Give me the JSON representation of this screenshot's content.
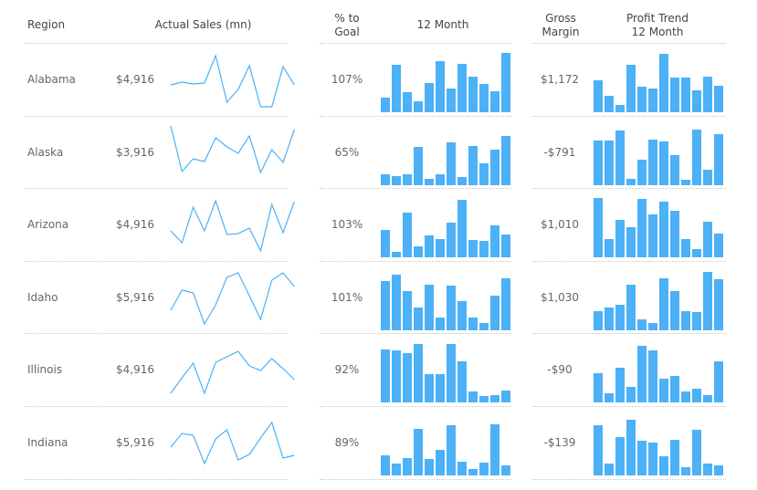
{
  "headers": {
    "region": "Region",
    "actual_sales": "Actual Sales (mn)",
    "pct_goal_1": "% to",
    "pct_goal_2": "Goal",
    "month12": "12 Month",
    "gross_1": "Gross",
    "gross_2": "Margin",
    "profit_1": "Profit Trend",
    "profit_2": "12 Month"
  },
  "colors": {
    "bar": "#4cb1f7",
    "line": "#4cb1f7",
    "divider": "#c8c8c8"
  },
  "rows": [
    {
      "region": "Alabama",
      "sales": "$4,916",
      "pct": "107%",
      "margin": "$1,172",
      "sales_trend": [
        25,
        28,
        26,
        27,
        57,
        6,
        20,
        46,
        1,
        1,
        45,
        25
      ],
      "month12": [
        16,
        52,
        22,
        12,
        32,
        56,
        26,
        53,
        39,
        31,
        23,
        65
      ],
      "profit": [
        35,
        18,
        8,
        52,
        28,
        26,
        64,
        38,
        38,
        24,
        39,
        29
      ]
    },
    {
      "region": "Alaska",
      "sales": "$3,916",
      "pct": "65%",
      "margin": "-$791",
      "sales_trend": [
        60,
        10,
        24,
        21,
        47,
        37,
        30,
        49,
        9,
        34,
        20,
        56
      ],
      "month12": [
        12,
        10,
        12,
        42,
        7,
        12,
        47,
        9,
        43,
        24,
        39,
        54
      ],
      "profit": [
        49,
        49,
        60,
        7,
        28,
        50,
        48,
        33,
        6,
        61,
        17,
        56
      ]
    },
    {
      "region": "Arizona",
      "sales": "$4,916",
      "pct": "103%",
      "margin": "$1,010",
      "sales_trend": [
        24,
        11,
        50,
        24,
        57,
        20,
        21,
        27,
        2,
        53,
        22,
        56
      ],
      "month12": [
        30,
        6,
        49,
        12,
        24,
        20,
        38,
        63,
        19,
        18,
        35,
        25
      ],
      "profit": [
        65,
        20,
        41,
        33,
        64,
        47,
        61,
        51,
        20,
        9,
        39,
        26
      ]
    },
    {
      "region": "Idaho",
      "sales": "$5,916",
      "pct": "101%",
      "margin": "$1,030",
      "sales_trend": [
        17,
        39,
        36,
        2,
        23,
        53,
        58,
        33,
        7,
        50,
        58,
        43
      ],
      "month12": [
        54,
        61,
        43,
        25,
        50,
        14,
        49,
        32,
        14,
        8,
        38,
        57
      ],
      "profit": [
        21,
        25,
        28,
        50,
        12,
        8,
        57,
        43,
        21,
        20,
        64,
        56
      ]
    },
    {
      "region": "Illinois",
      "sales": "$4,916",
      "pct": "92%",
      "margin": "-$90",
      "sales_trend": [
        5,
        22,
        38,
        5,
        39,
        45,
        51,
        35,
        30,
        43,
        32,
        20
      ],
      "month12": [
        58,
        57,
        54,
        64,
        31,
        31,
        64,
        45,
        12,
        7,
        8,
        13
      ],
      "profit": [
        32,
        10,
        38,
        17,
        62,
        57,
        26,
        29,
        12,
        15,
        8,
        45
      ]
    },
    {
      "region": "Indiana",
      "sales": "$5,916",
      "pct": "89%",
      "margin": "-$139",
      "sales_trend": [
        26,
        41,
        39,
        8,
        35,
        45,
        12,
        18,
        36,
        53,
        14,
        17
      ],
      "month12": [
        22,
        13,
        19,
        51,
        18,
        28,
        55,
        15,
        7,
        14,
        56,
        11
      ],
      "profit": [
        55,
        13,
        42,
        61,
        38,
        36,
        21,
        39,
        9,
        50,
        13,
        11
      ]
    }
  ]
}
